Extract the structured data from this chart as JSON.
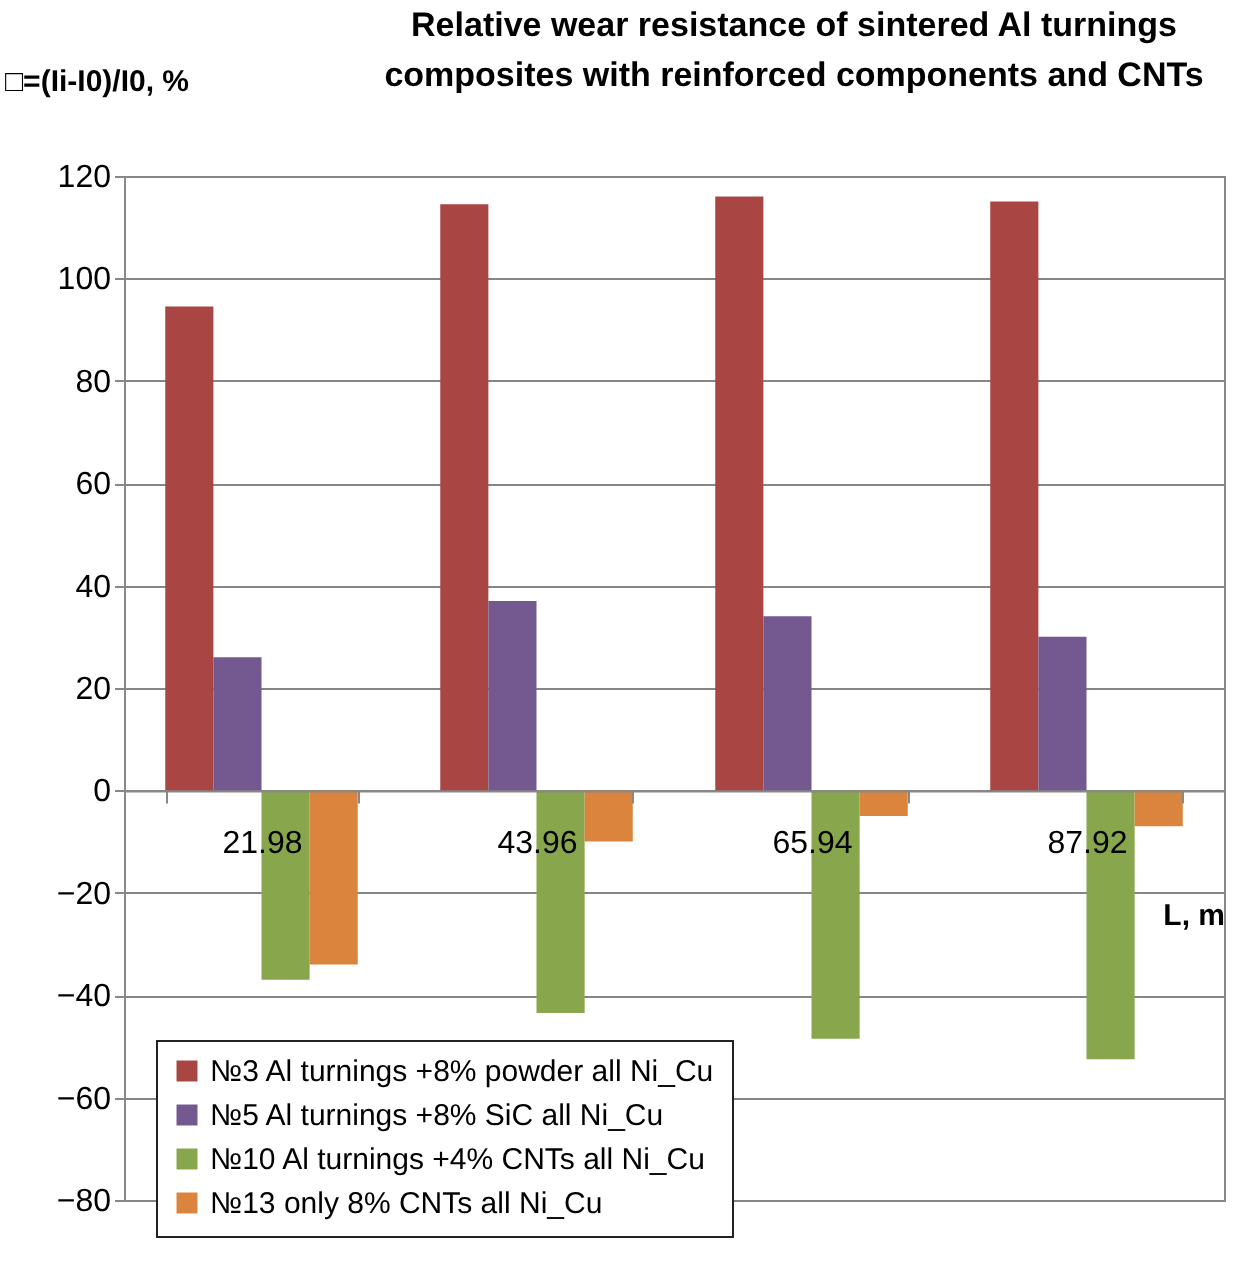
{
  "chart_data": {
    "type": "bar",
    "title": [
      "Relative wear resistance of  sintered Al turnings",
      "composites with reinforced components and CNTs"
    ],
    "ylabel": "□=(Ii-I0)/I0, %",
    "xlabel": "L, m",
    "categories": [
      "21.98",
      "43.96",
      "65.94",
      "87.92"
    ],
    "series": [
      {
        "name": "№3 Al turnings +8% powder all Ni_Cu",
        "color": "#a94643",
        "values": [
          94.5,
          114.5,
          116,
          115
        ]
      },
      {
        "name": "№5 Al turnings +8% SiC all Ni_Cu",
        "color": "#735990",
        "values": [
          26,
          37,
          34,
          30
        ]
      },
      {
        "name": "№10 Al turnings +4% CNTs all Ni_Cu",
        "color": "#88a64c",
        "values": [
          -37,
          -43.5,
          -48.5,
          -52.5
        ]
      },
      {
        "name": "№13 only 8% CNTs all Ni_Cu",
        "color": "#db843d",
        "values": [
          -34,
          -10,
          -5,
          -7
        ]
      }
    ],
    "ylim": [
      -80,
      120
    ],
    "yticks": [
      -80,
      -60,
      -40,
      -20,
      0,
      20,
      40,
      60,
      80,
      100,
      120
    ],
    "grid": "y",
    "legend": "bottom left"
  }
}
